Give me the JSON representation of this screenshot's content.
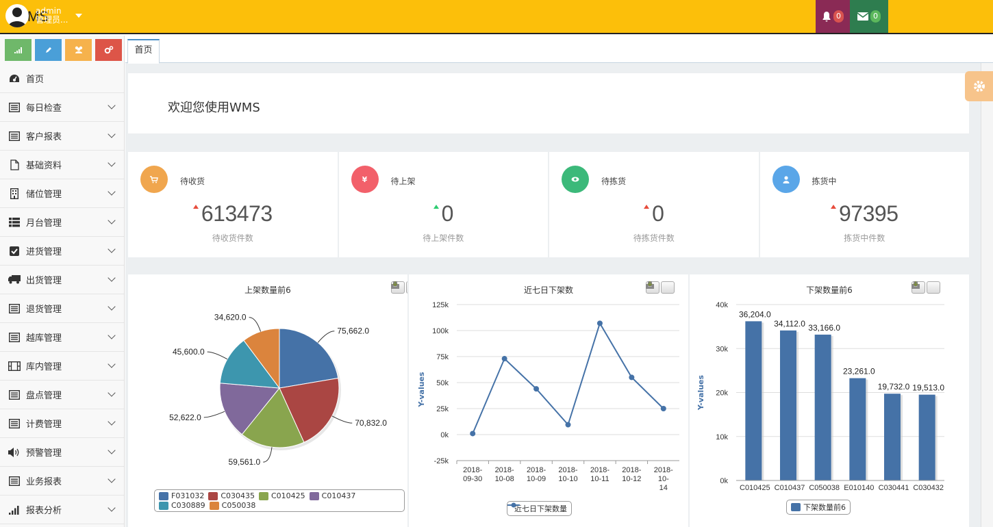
{
  "app": {
    "brand": "WMS"
  },
  "header": {
    "notifications_count": "0",
    "messages_count": "0",
    "user_name": "admin",
    "user_role": "管理员...",
    "colors": {
      "bar": "#fcbf0a",
      "bell": "#8a2a55",
      "mail": "#2e7d4f",
      "user": "#58a3d6",
      "badge_red": "#d9534f",
      "badge_green": "#5cb85c"
    }
  },
  "sidebar": {
    "shortcuts": [
      {
        "icon": "signal-icon",
        "color": "#5cb85c"
      },
      {
        "icon": "pencil-icon",
        "color": "#428bca"
      },
      {
        "icon": "users-icon",
        "color": "#f0ad4e"
      },
      {
        "icon": "cogs-icon",
        "color": "#d9534f"
      }
    ],
    "items": [
      {
        "label": "首页",
        "icon": "dashboard-icon",
        "has_children": false
      },
      {
        "label": "每日检查",
        "icon": "list-icon",
        "has_children": true
      },
      {
        "label": "客户报表",
        "icon": "list-icon",
        "has_children": true
      },
      {
        "label": "基础资料",
        "icon": "file-icon",
        "has_children": true
      },
      {
        "label": "储位管理",
        "icon": "building-icon",
        "has_children": true
      },
      {
        "label": "月台管理",
        "icon": "th-list-icon",
        "has_children": true
      },
      {
        "label": "进货管理",
        "icon": "check-square-icon",
        "has_children": true
      },
      {
        "label": "出货管理",
        "icon": "truck-icon",
        "has_children": true
      },
      {
        "label": "退货管理",
        "icon": "list-icon",
        "has_children": true
      },
      {
        "label": "越库管理",
        "icon": "list-icon",
        "has_children": true
      },
      {
        "label": "库内管理",
        "icon": "film-icon",
        "has_children": true
      },
      {
        "label": "盘点管理",
        "icon": "list-icon",
        "has_children": true
      },
      {
        "label": "计费管理",
        "icon": "list-icon",
        "has_children": true
      },
      {
        "label": "预警管理",
        "icon": "volume-icon",
        "has_children": true
      },
      {
        "label": "业务报表",
        "icon": "list-icon",
        "has_children": true
      },
      {
        "label": "报表分析",
        "icon": "signal-icon",
        "has_children": true
      }
    ]
  },
  "tabs": [
    {
      "label": "首页",
      "active": true
    }
  ],
  "welcome": {
    "text": "欢迎您使用WMS"
  },
  "stats": [
    {
      "label": "待收货",
      "value": "613473",
      "sub": "待收货件数",
      "icon": "cart-icon",
      "color": "#f0a64e",
      "trend": "up",
      "trend_color": "#e74c3c"
    },
    {
      "label": "待上架",
      "value": "0",
      "sub": "待上架件数",
      "icon": "yen-icon",
      "color": "#f2606a",
      "trend": "up",
      "trend_color": "#2ecc71"
    },
    {
      "label": "待拣货",
      "value": "0",
      "sub": "待拣货件数",
      "icon": "eye-icon",
      "color": "#3cb97a",
      "trend": "up",
      "trend_color": "#e74c3c"
    },
    {
      "label": "拣货中",
      "value": "97395",
      "sub": "拣货中件数",
      "icon": "user-icon",
      "color": "#5aa6e8",
      "trend": "up",
      "trend_color": "#e74c3c"
    }
  ],
  "chart_data": [
    {
      "type": "pie",
      "title": "上架数量前6",
      "slices": [
        {
          "name": "F031032",
          "value": 75662.0,
          "label": "75,662.0",
          "color": "#4572a7"
        },
        {
          "name": "C030435",
          "value": 70832.0,
          "label": "70,832.0",
          "color": "#aa4643"
        },
        {
          "name": "C010425",
          "value": 59561.0,
          "label": "59,561.0",
          "color": "#89a54e"
        },
        {
          "name": "C010437",
          "value": 52622.0,
          "label": "52,622.0",
          "color": "#80699b"
        },
        {
          "name": "C030889",
          "value": 45600.0,
          "label": "45,600.0",
          "color": "#3d96ae"
        },
        {
          "name": "C050038",
          "value": 34620.0,
          "label": "34,620.0",
          "color": "#db843d"
        }
      ],
      "legend_position": "bottom"
    },
    {
      "type": "line",
      "title": "近七日下架数",
      "ylabel": "Y-values",
      "ylim": [
        -25000,
        125000
      ],
      "yticks": [
        -25000,
        0,
        25000,
        50000,
        75000,
        100000,
        125000
      ],
      "ytick_labels": [
        "-25k",
        "0k",
        "25k",
        "50k",
        "75k",
        "100k",
        "125k"
      ],
      "categories": [
        [
          "2018-",
          "09-30"
        ],
        [
          "2018-",
          "10-08"
        ],
        [
          "2018-",
          "10-09"
        ],
        [
          "2018-",
          "10-10"
        ],
        [
          "2018-",
          "10-11"
        ],
        [
          "2018-",
          "10-12"
        ],
        [
          "2018-",
          "10-",
          "14"
        ]
      ],
      "series": [
        {
          "name": "近七日下架数量",
          "values": [
            1000,
            73000,
            44000,
            9500,
            107000,
            55000,
            25000
          ],
          "color": "#4572a7"
        }
      ],
      "grid": true,
      "legend_position": "bottom"
    },
    {
      "type": "bar",
      "title": "下架数量前6",
      "ylabel": "Y-values",
      "ylim": [
        0,
        40000
      ],
      "yticks": [
        0,
        10000,
        20000,
        30000,
        40000
      ],
      "ytick_labels": [
        "0k",
        "10k",
        "20k",
        "30k",
        "40k"
      ],
      "categories": [
        "C010425",
        "C010437",
        "C050038",
        "E010140",
        "C030441",
        "C030432"
      ],
      "series": [
        {
          "name": "下架数量前6",
          "values": [
            36204.0,
            34112.0,
            33166.0,
            23261.0,
            19732.0,
            19513.0
          ],
          "labels": [
            "36,204.0",
            "34,112.0",
            "33,166.0",
            "23,261.0",
            "19,732.0",
            "19,513.0"
          ],
          "color": "#4572a7"
        }
      ],
      "grid": true,
      "legend_position": "bottom"
    }
  ]
}
